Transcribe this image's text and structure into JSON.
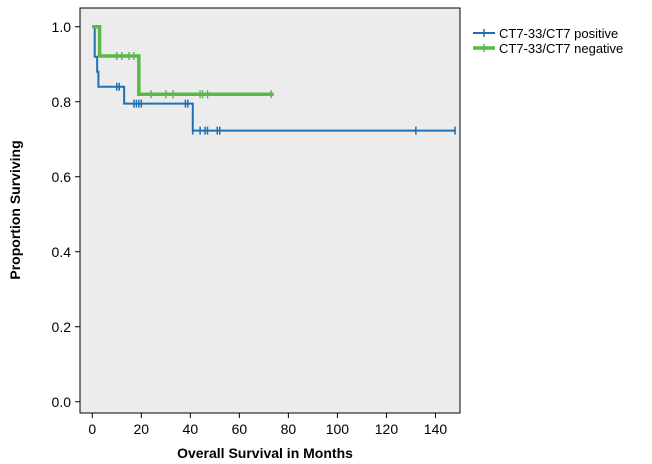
{
  "chart_data": {
    "type": "line",
    "subtype": "kaplan-meier step",
    "title": "",
    "xlabel": "Overall Survival in Months",
    "ylabel": "Proportion Surviving",
    "xlim": [
      -5,
      150
    ],
    "ylim": [
      -0.03,
      1.05
    ],
    "x_ticks": [
      0,
      20,
      40,
      60,
      80,
      100,
      120,
      140
    ],
    "y_ticks": [
      0.0,
      0.2,
      0.4,
      0.6,
      0.8,
      1.0
    ],
    "x_tick_labels": [
      "0",
      "20",
      "40",
      "60",
      "80",
      "100",
      "120",
      "140"
    ],
    "y_tick_labels": [
      "0.0",
      "0.2",
      "0.4",
      "0.6",
      "0.8",
      "1.0"
    ],
    "grid": false,
    "plot_background": "#ececec",
    "legend_position": "right",
    "series": [
      {
        "name": "CT7-33/CT7 positive",
        "color": "#1f6fb2",
        "steps": [
          [
            0,
            1.0
          ],
          [
            1,
            0.92
          ],
          [
            2,
            0.88
          ],
          [
            2.5,
            0.84
          ],
          [
            12,
            0.84
          ],
          [
            13,
            0.795
          ],
          [
            40,
            0.795
          ],
          [
            41,
            0.723
          ],
          [
            148,
            0.723
          ]
        ],
        "censored": [
          [
            10,
            0.84
          ],
          [
            11,
            0.84
          ],
          [
            17,
            0.795
          ],
          [
            18,
            0.795
          ],
          [
            19,
            0.795
          ],
          [
            20,
            0.795
          ],
          [
            38,
            0.795
          ],
          [
            39,
            0.795
          ],
          [
            41,
            0.723
          ],
          [
            44,
            0.723
          ],
          [
            46,
            0.723
          ],
          [
            47,
            0.723
          ],
          [
            51,
            0.723
          ],
          [
            52,
            0.723
          ],
          [
            132,
            0.723
          ],
          [
            148,
            0.723
          ]
        ]
      },
      {
        "name": "CT7-33/CT7 negative",
        "color": "#5cb84a",
        "steps": [
          [
            0,
            1.0
          ],
          [
            3,
            1.0
          ],
          [
            3,
            0.922
          ],
          [
            18,
            0.922
          ],
          [
            19,
            0.82
          ],
          [
            74,
            0.82
          ]
        ],
        "censored": [
          [
            10,
            0.922
          ],
          [
            12,
            0.922
          ],
          [
            15,
            0.922
          ],
          [
            17,
            0.922
          ],
          [
            24,
            0.82
          ],
          [
            30,
            0.82
          ],
          [
            33,
            0.82
          ],
          [
            44,
            0.82
          ],
          [
            45,
            0.82
          ],
          [
            47,
            0.82
          ],
          [
            73,
            0.82
          ]
        ]
      }
    ]
  }
}
